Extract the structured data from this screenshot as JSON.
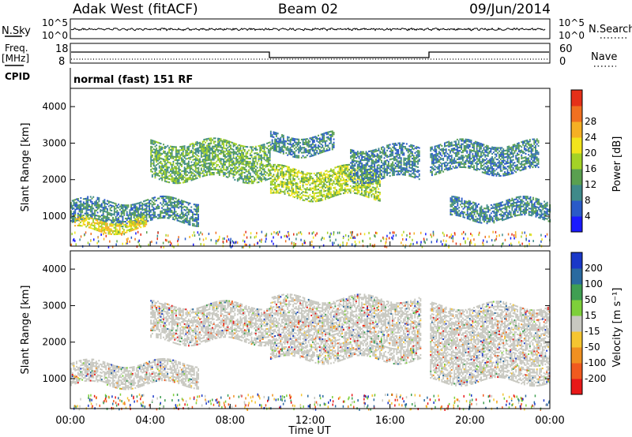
{
  "header": {
    "site": "Adak West (fitACF)",
    "beam": "Beam 02",
    "date": "09/Jun/2014"
  },
  "strip": {
    "nsky_label": "N.Sky",
    "nsky_ticks": [
      "10^5",
      "10^0"
    ],
    "nsearch_label": "N.Search",
    "nsearch_ticks": [
      "10^5",
      "10^0"
    ],
    "freq_label": "Freq.",
    "freq_unit": "[MHz]",
    "freq_ticks": [
      "18",
      "8"
    ],
    "nave_label": "Nave",
    "nave_ticks": [
      "60",
      "0"
    ],
    "cpid_label": "CPID",
    "cpid_text": "normal (fast) 151 RF"
  },
  "chart_data": [
    {
      "type": "heatmap",
      "name": "power",
      "ylabel": "Slant Range [km]",
      "yticks": [
        "1000",
        "2000",
        "3000",
        "4000"
      ],
      "ylim": [
        180,
        4500
      ],
      "xlim_hours": [
        0,
        24
      ],
      "colorbar": {
        "label": "Power [dB]",
        "ticks": [
          "4",
          "8",
          "12",
          "16",
          "20",
          "24",
          "28"
        ],
        "colors": [
          "#1a1aff",
          "#2a5ac8",
          "#3f8a8a",
          "#5aa050",
          "#a4d226",
          "#f2e41c",
          "#f5b024",
          "#f07020",
          "#e53018"
        ]
      },
      "regions": [
        {
          "t0": 0.0,
          "t1": 6.4,
          "r0": 800,
          "r1": 1400,
          "slope": 0.03,
          "level": 2
        },
        {
          "t0": 0.2,
          "t1": 3.8,
          "r0": 600,
          "r1": 900,
          "level": 5
        },
        {
          "t0": 4.0,
          "t1": 10.0,
          "r0": 2000,
          "r1": 3000,
          "level": 3
        },
        {
          "t0": 10.0,
          "t1": 15.5,
          "r0": 1500,
          "r1": 2300,
          "level": 4
        },
        {
          "t0": 10.0,
          "t1": 13.2,
          "r0": 2700,
          "r1": 3200,
          "level": 2
        },
        {
          "t0": 14.0,
          "t1": 17.5,
          "r0": 2000,
          "r1": 2900,
          "level": 2
        },
        {
          "t0": 18.0,
          "t1": 23.4,
          "r0": 2200,
          "r1": 3000,
          "level": 2
        },
        {
          "t0": 19.0,
          "t1": 24.0,
          "r0": 900,
          "r1": 1400,
          "level": 2
        }
      ]
    },
    {
      "type": "heatmap",
      "name": "velocity",
      "ylabel": "Slant Range [km]",
      "yticks": [
        "1000",
        "2000",
        "3000",
        "4000"
      ],
      "ylim": [
        180,
        4500
      ],
      "xlim_hours": [
        0,
        24
      ],
      "colorbar": {
        "label": "Velocity [m s⁻¹]",
        "ticks": [
          "-200",
          "-100",
          "-50",
          "-15",
          "15",
          "50",
          "100",
          "200"
        ],
        "colors": [
          "#e81818",
          "#f05a1e",
          "#f09020",
          "#f5c530",
          "#c8c8c0",
          "#7ed03a",
          "#3f9f52",
          "#2a6aa0",
          "#1a38c8"
        ]
      },
      "regions": [
        {
          "t0": 0.0,
          "t1": 6.4,
          "r0": 800,
          "r1": 1400,
          "slope": 0.03,
          "level": 4
        },
        {
          "t0": 4.0,
          "t1": 10.0,
          "r0": 2000,
          "r1": 3000,
          "level": 4
        },
        {
          "t0": 10.0,
          "t1": 17.5,
          "r0": 1500,
          "r1": 3200,
          "level": 4
        },
        {
          "t0": 18.0,
          "t1": 24.0,
          "r0": 900,
          "r1": 3000,
          "level": 4
        }
      ]
    }
  ],
  "xaxis": {
    "ticks": [
      "00:00",
      "04:00",
      "08:00",
      "12:00",
      "16:00",
      "20:00",
      "00:00"
    ],
    "label": "Time UT"
  }
}
